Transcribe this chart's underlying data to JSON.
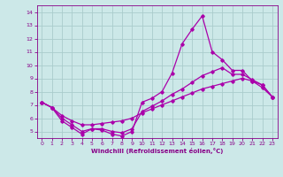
{
  "title": "",
  "xlabel": "Windchill (Refroidissement éolien,°C)",
  "ylabel": "",
  "bg_color": "#cce8e8",
  "grid_color": "#aacccc",
  "line_color": "#aa00aa",
  "spine_color": "#880088",
  "xlim": [
    -0.5,
    23.5
  ],
  "ylim": [
    4.5,
    14.5
  ],
  "xticks": [
    0,
    1,
    2,
    3,
    4,
    5,
    6,
    7,
    8,
    9,
    10,
    11,
    12,
    13,
    14,
    15,
    16,
    17,
    18,
    19,
    20,
    21,
    22,
    23
  ],
  "yticks": [
    5,
    6,
    7,
    8,
    9,
    10,
    11,
    12,
    13,
    14
  ],
  "line1_x": [
    0,
    1,
    2,
    3,
    4,
    5,
    6,
    7,
    8,
    9,
    10,
    11,
    12,
    13,
    14,
    15,
    16,
    17,
    18,
    19,
    20,
    21,
    22,
    23
  ],
  "line1_y": [
    7.2,
    6.8,
    5.8,
    5.3,
    4.8,
    5.2,
    5.1,
    4.8,
    4.65,
    5.0,
    7.2,
    7.5,
    8.0,
    9.4,
    11.6,
    12.7,
    13.7,
    11.0,
    10.4,
    9.6,
    9.6,
    8.8,
    8.3,
    7.6
  ],
  "line2_x": [
    0,
    1,
    2,
    3,
    4,
    5,
    6,
    7,
    8,
    9,
    10,
    11,
    12,
    13,
    14,
    15,
    16,
    17,
    18,
    19,
    20,
    21,
    22,
    23
  ],
  "line2_y": [
    7.2,
    6.8,
    6.2,
    5.8,
    5.5,
    5.5,
    5.6,
    5.7,
    5.8,
    6.0,
    6.4,
    6.7,
    7.0,
    7.3,
    7.6,
    7.9,
    8.2,
    8.4,
    8.6,
    8.8,
    9.0,
    8.8,
    8.5,
    7.6
  ],
  "line3_x": [
    0,
    1,
    2,
    3,
    4,
    5,
    6,
    7,
    8,
    9,
    10,
    11,
    12,
    13,
    14,
    15,
    16,
    17,
    18,
    19,
    20,
    21,
    22,
    23
  ],
  "line3_y": [
    7.2,
    6.8,
    6.0,
    5.5,
    5.0,
    5.2,
    5.2,
    5.0,
    4.9,
    5.2,
    6.5,
    6.9,
    7.3,
    7.8,
    8.2,
    8.7,
    9.2,
    9.5,
    9.8,
    9.3,
    9.3,
    8.9,
    8.5,
    7.6
  ]
}
